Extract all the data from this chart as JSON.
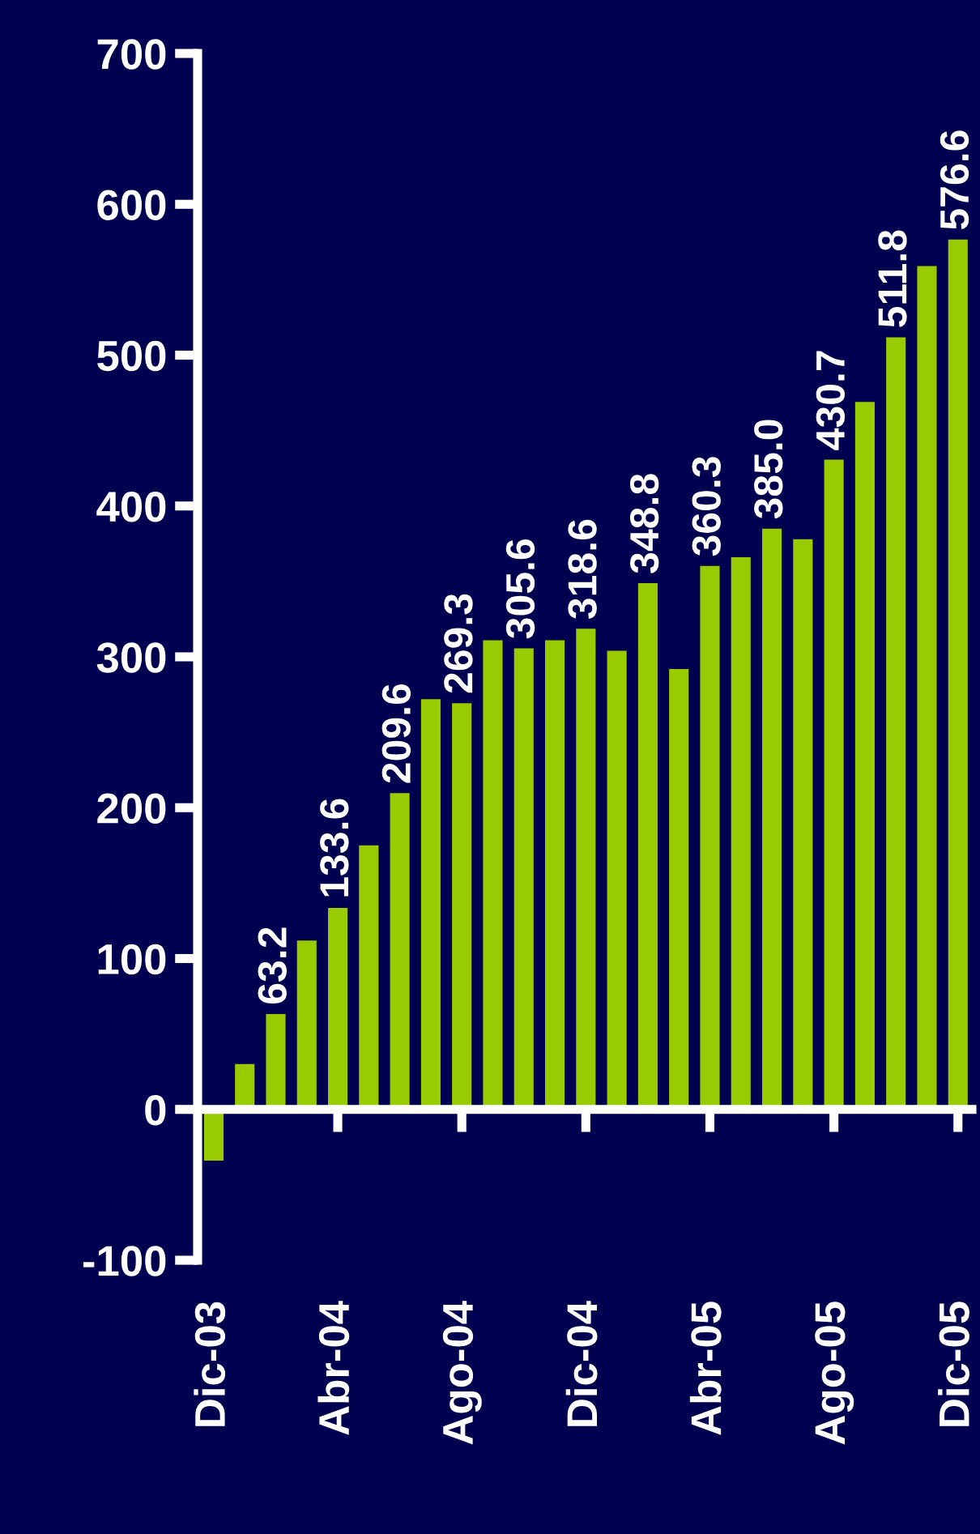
{
  "chart_data": {
    "type": "bar",
    "categories": [
      "Dic-03",
      null,
      null,
      null,
      "Abr-04",
      null,
      null,
      null,
      "Ago-04",
      null,
      null,
      null,
      "Dic-04",
      null,
      null,
      null,
      "Abr-05",
      null,
      null,
      null,
      "Ago-05",
      null,
      null,
      null,
      "Dic-05"
    ],
    "values": [
      -34,
      30,
      63.2,
      112,
      133.6,
      175,
      209.6,
      272,
      269.3,
      311,
      305.6,
      311,
      318.6,
      304,
      348.8,
      292,
      360.3,
      366,
      385.0,
      378,
      430.7,
      469,
      511.8,
      559,
      576.6
    ],
    "value_labels": [
      null,
      null,
      "63.2",
      null,
      "133.6",
      null,
      "209.6",
      null,
      "269.3",
      null,
      "305.6",
      null,
      "318.6",
      null,
      "348.8",
      null,
      "360.3",
      null,
      "385.0",
      null,
      "430.7",
      null,
      "511.8",
      null,
      "576.6"
    ],
    "color": "#99cc00",
    "ylim": [
      -100,
      700
    ],
    "yticks": [
      -100,
      0,
      100,
      200,
      300,
      400,
      500,
      600,
      700
    ],
    "legend": false
  }
}
